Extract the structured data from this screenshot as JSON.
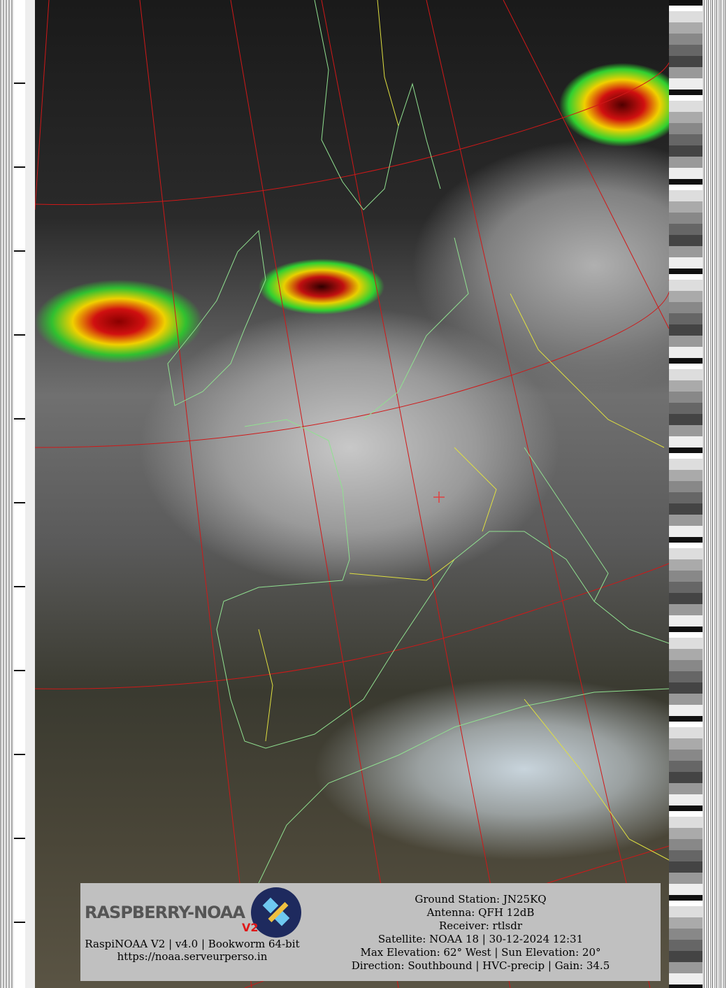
{
  "image": {
    "type": "NOAA APT satellite image",
    "colors": {
      "precip_high": "#8a0000",
      "precip_mid": "#d01010",
      "precip_low": "#f0d000",
      "precip_light": "#30c030",
      "graticule": "#d01818",
      "coastline": "#90e090",
      "borders": "#e0e040",
      "info_box": "#c0c0c0"
    }
  },
  "info": {
    "logo_text": "RASPBERRY-NOAA",
    "logo_version": "V2",
    "software": "RaspiNOAA V2 | v4.0 | Bookworm 64-bit",
    "url": "https://noaa.serveurperso.in",
    "lines": [
      "Ground Station: JN25KQ",
      "Antenna: QFH 12dB",
      "Receiver: rtlsdr",
      "Satellite: NOAA 18 | 30-12-2024 12:31",
      "Max Elevation: 62° West | Sun Elevation: 20°",
      "Direction: Southbound | HVC-precip | Gain: 34.5"
    ]
  }
}
